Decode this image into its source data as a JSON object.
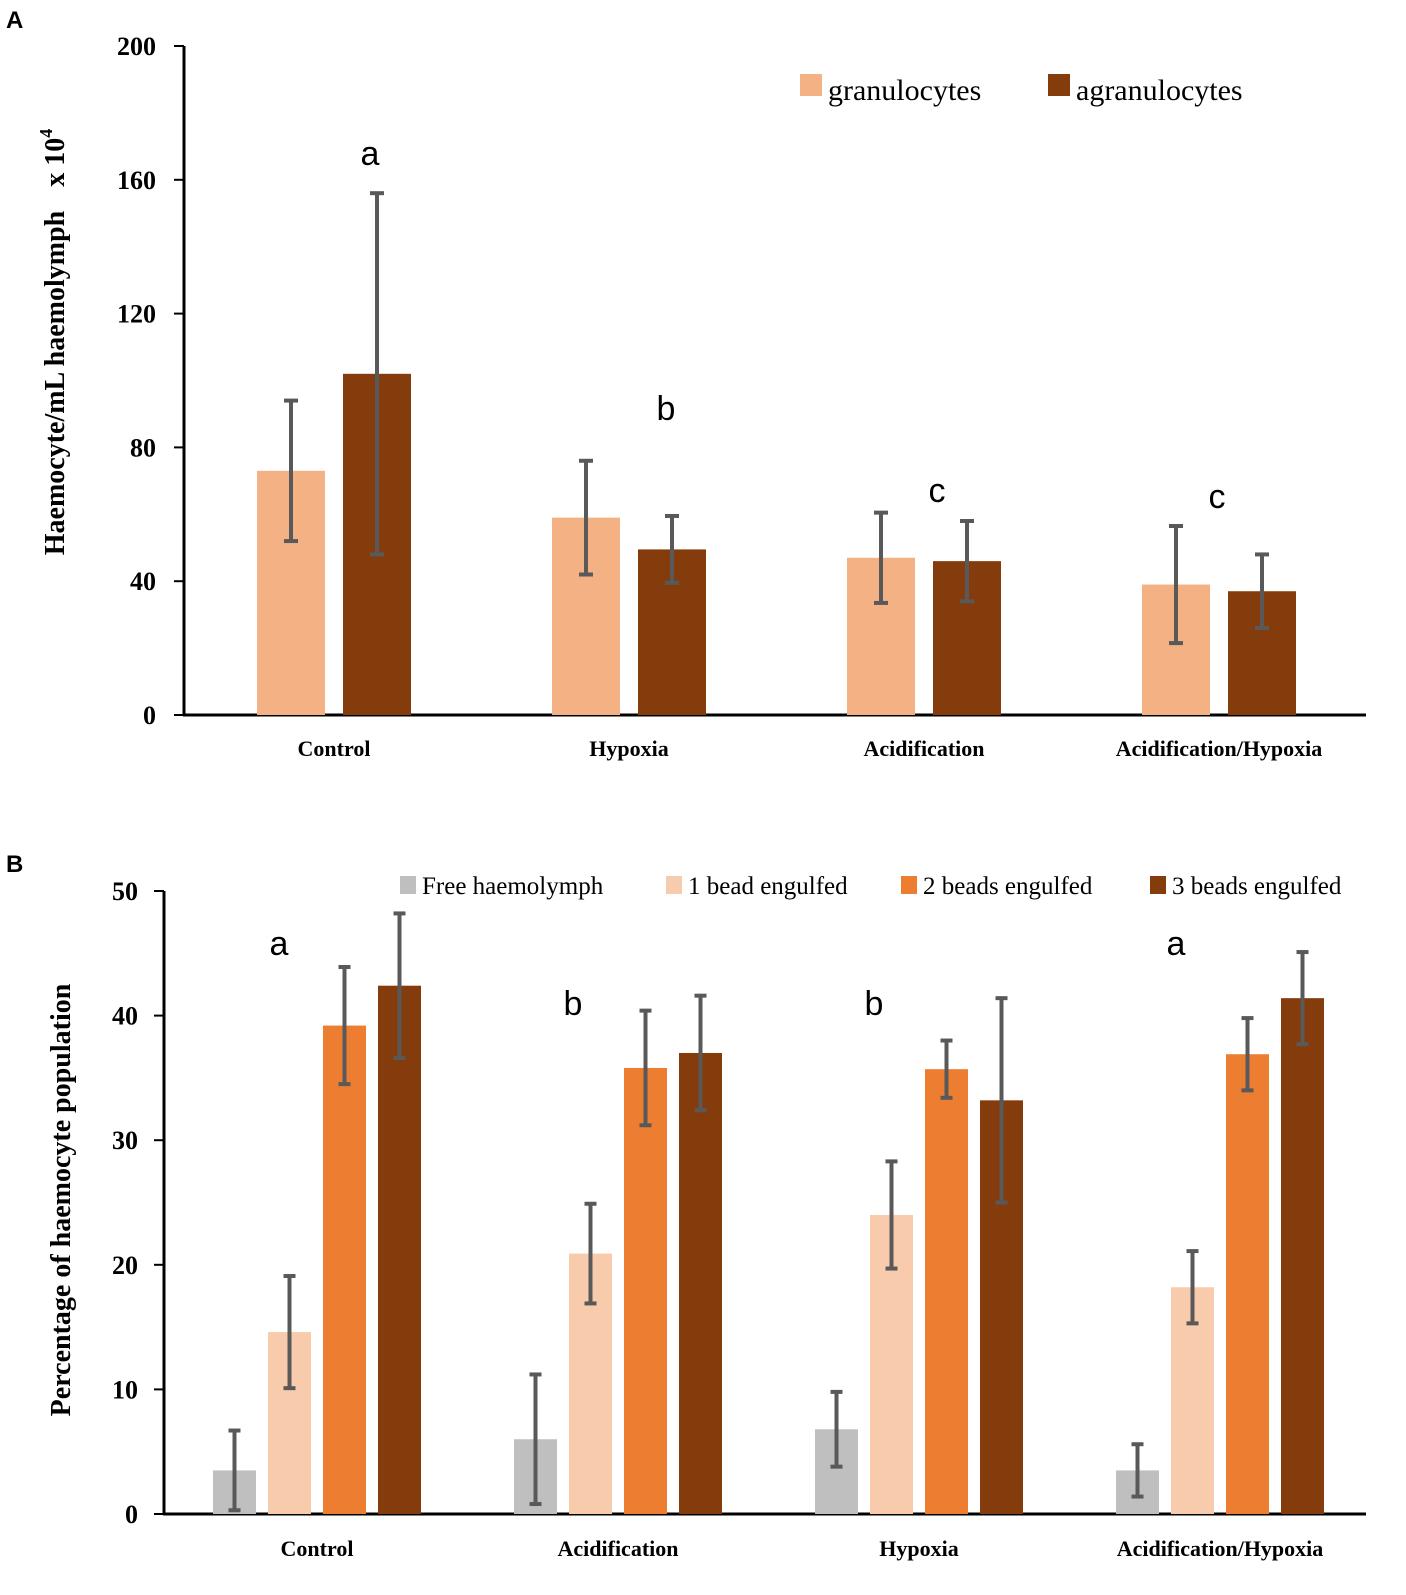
{
  "panels": {
    "a": {
      "label": "A"
    },
    "b": {
      "label": "B"
    }
  },
  "chart_data": [
    {
      "type": "bar",
      "panel": "A",
      "title": "",
      "xlabel": "",
      "ylabel": "Haemocyte/mL haemolymph",
      "ylabel_unit": "x 10",
      "ylabel_unit_exp": "4",
      "ylim": [
        0,
        200
      ],
      "yticks": [
        0,
        40,
        80,
        120,
        160,
        200
      ],
      "categories": [
        "Control",
        "Hypoxia",
        "Acidification",
        "Acidification/Hypoxia"
      ],
      "series": [
        {
          "name": "granulocytes",
          "color": "#F4B183",
          "values": [
            73,
            59,
            47,
            39
          ],
          "errors": [
            21,
            17,
            13.5,
            17.5
          ]
        },
        {
          "name": "agranulocytes",
          "color": "#843C0C",
          "values": [
            102,
            49.5,
            46,
            37
          ],
          "errors": [
            54,
            10,
            12,
            11
          ]
        }
      ],
      "significance": [
        "a",
        "b",
        "c",
        "c"
      ],
      "legend": "top-right"
    },
    {
      "type": "bar",
      "panel": "B",
      "title": "",
      "xlabel": "",
      "ylabel": "Percentage of haemocyte population",
      "ylim": [
        0,
        50
      ],
      "yticks": [
        0,
        10,
        20,
        30,
        40,
        50
      ],
      "categories": [
        "Control",
        "Acidification",
        "Hypoxia",
        "Acidification/Hypoxia"
      ],
      "series": [
        {
          "name": "Free haemolymph",
          "color": "#BFBFBF",
          "values": [
            3.5,
            6,
            6.8,
            3.5
          ],
          "errors": [
            3.2,
            5.2,
            3,
            2.1
          ]
        },
        {
          "name": "1 bead engulfed",
          "color": "#F8CBAD",
          "values": [
            14.6,
            20.9,
            24,
            18.2
          ],
          "errors": [
            4.5,
            4,
            4.3,
            2.9
          ]
        },
        {
          "name": "2 beads engulfed",
          "color": "#ED7D31",
          "values": [
            39.2,
            35.8,
            35.7,
            36.9
          ],
          "errors": [
            4.7,
            4.6,
            2.3,
            2.9
          ]
        },
        {
          "name": "3 beads engulfed",
          "color": "#843C0C",
          "values": [
            42.4,
            37,
            33.2,
            41.4
          ],
          "errors": [
            5.8,
            4.6,
            8.2,
            3.7
          ]
        }
      ],
      "significance": [
        "a",
        "b",
        "b",
        "a"
      ],
      "legend": "top"
    }
  ]
}
